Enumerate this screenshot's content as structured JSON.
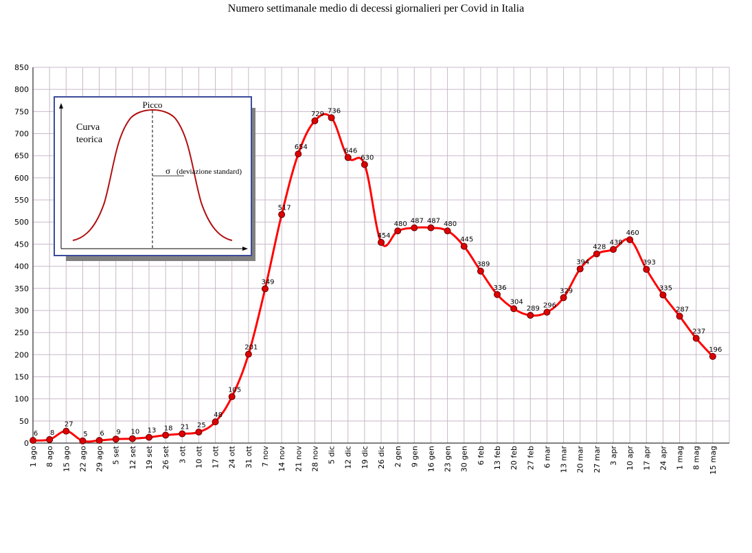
{
  "chart_data": {
    "type": "line",
    "title": "Numero settimanale medio di decessi giornalieri per Covid in Italia",
    "xlabel": "",
    "ylabel": "",
    "ylim": [
      0,
      850
    ],
    "yticks": [
      0,
      50,
      100,
      150,
      200,
      250,
      300,
      350,
      400,
      450,
      500,
      550,
      600,
      650,
      700,
      750,
      800,
      850
    ],
    "grid": true,
    "categories": [
      "1 ago",
      "8 ago",
      "15 ago",
      "22 ago",
      "29 ago",
      "5 set",
      "12 set",
      "19 set",
      "26 set",
      "3 ott",
      "10 ott",
      "17 ott",
      "24 ott",
      "31 ott",
      "7 nov",
      "14 nov",
      "21 nov",
      "28 nov",
      "5 dic",
      "12 dic",
      "19 dic",
      "26 dic",
      "2 gen",
      "9 gen",
      "16 gen",
      "23 gen",
      "30 gen",
      "6 feb",
      "13 feb",
      "20 feb",
      "27 feb",
      "6 mar",
      "13 mar",
      "20 mar",
      "27 mar",
      "3 apr",
      "10 apr",
      "17 apr",
      "24 apr",
      "1 mag",
      "8 mag",
      "15 mag"
    ],
    "series": [
      {
        "name": "",
        "color": "#ff0000",
        "values": [
          6,
          8,
          27,
          5,
          6,
          9,
          10,
          13,
          18,
          21,
          25,
          48,
          105,
          201,
          349,
          517,
          654,
          729,
          736,
          646,
          630,
          454,
          480,
          487,
          487,
          480,
          445,
          389,
          336,
          304,
          289,
          296,
          329,
          394,
          428,
          438,
          460,
          393,
          335,
          287,
          237,
          196
        ],
        "labels": [
          "6",
          "8",
          "27",
          "5",
          "6",
          "9",
          "10",
          "13",
          "18",
          "21",
          "25",
          "48",
          "105",
          "201",
          "349",
          "517",
          "654",
          "729",
          "736",
          "646",
          "630",
          "454",
          "480",
          "487",
          "487",
          "480",
          "445",
          "389",
          "336",
          "304",
          "289",
          "296",
          "329",
          "394",
          "428",
          "438",
          "460",
          "393",
          "335",
          "287",
          "237",
          "196"
        ]
      }
    ],
    "inset": {
      "peak_label": "Picco",
      "curve_label_line1": "Curva",
      "curve_label_line2": "teorica",
      "sigma_symbol": "σ",
      "sigma_label": "(deviazione standard)"
    }
  },
  "colors": {
    "line": "#ff0000",
    "marker_fill": "#dd0000",
    "grid": "#c8b8c8",
    "inset_border": "#3a4a9a",
    "inset_curve": "#b01010",
    "inset_shadow": "#808080"
  }
}
